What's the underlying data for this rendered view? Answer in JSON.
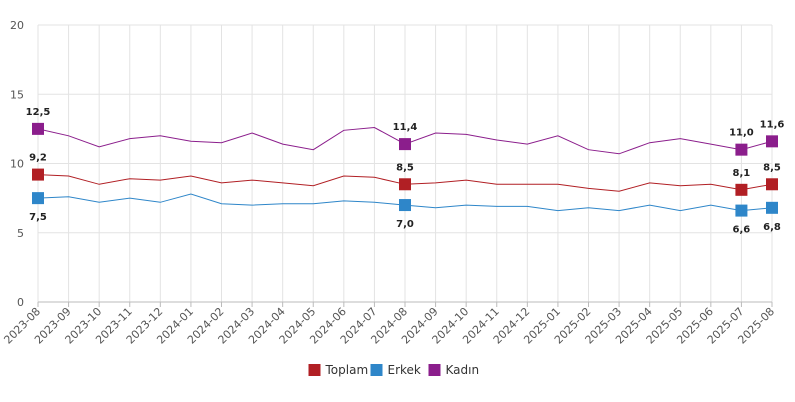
{
  "chart_data": {
    "type": "line",
    "x": [
      "2023-08",
      "2023-09",
      "2023-10",
      "2023-11",
      "2023-12",
      "2024-01",
      "2024-02",
      "2024-03",
      "2024-04",
      "2024-05",
      "2024-06",
      "2024-07",
      "2024-08",
      "2024-09",
      "2024-10",
      "2024-11",
      "2024-12",
      "2025-01",
      "2025-02",
      "2025-03",
      "2025-04",
      "2025-05",
      "2025-06",
      "2025-07",
      "2025-08"
    ],
    "ylim": [
      0,
      20
    ],
    "yticks": [
      "0",
      "5",
      "10",
      "15",
      "20"
    ],
    "grid": true,
    "legend": "bottom-center",
    "series": [
      {
        "name": "Toplam",
        "color": "#b11f24",
        "values": [
          9.2,
          9.1,
          8.5,
          8.9,
          8.8,
          9.1,
          8.6,
          8.8,
          8.6,
          8.4,
          9.1,
          9.0,
          8.5,
          8.6,
          8.8,
          8.5,
          8.5,
          8.5,
          8.2,
          8.0,
          8.6,
          8.4,
          8.5,
          8.1,
          8.5
        ],
        "marked": [
          0,
          12,
          23,
          24
        ],
        "labels": [
          {
            "i": 0,
            "text": "9,2",
            "pos": "above"
          },
          {
            "i": 12,
            "text": "8,5",
            "pos": "above"
          },
          {
            "i": 23,
            "text": "8,1",
            "pos": "above"
          },
          {
            "i": 24,
            "text": "8,5",
            "pos": "above"
          }
        ]
      },
      {
        "name": "Erkek",
        "color": "#2e86c9",
        "values": [
          7.5,
          7.6,
          7.2,
          7.5,
          7.2,
          7.8,
          7.1,
          7.0,
          7.1,
          7.1,
          7.3,
          7.2,
          7.0,
          6.8,
          7.0,
          6.9,
          6.9,
          6.6,
          6.8,
          6.6,
          7.0,
          6.6,
          7.0,
          6.6,
          6.8
        ],
        "marked": [
          0,
          12,
          23,
          24
        ],
        "labels": [
          {
            "i": 0,
            "text": "7,5",
            "pos": "below"
          },
          {
            "i": 12,
            "text": "7,0",
            "pos": "below"
          },
          {
            "i": 23,
            "text": "6,6",
            "pos": "below"
          },
          {
            "i": 24,
            "text": "6,8",
            "pos": "below"
          }
        ]
      },
      {
        "name": "Kadın",
        "color": "#8b1e8c",
        "values": [
          12.5,
          12.0,
          11.2,
          11.8,
          12.0,
          11.6,
          11.5,
          12.2,
          11.4,
          11.0,
          12.4,
          12.6,
          11.4,
          12.2,
          12.1,
          11.7,
          11.4,
          12.0,
          11.0,
          10.7,
          11.5,
          11.8,
          11.4,
          11.0,
          11.6
        ],
        "marked": [
          0,
          12,
          23,
          24
        ],
        "labels": [
          {
            "i": 0,
            "text": "12,5",
            "pos": "above"
          },
          {
            "i": 12,
            "text": "11,4",
            "pos": "above"
          },
          {
            "i": 23,
            "text": "11,0",
            "pos": "above"
          },
          {
            "i": 24,
            "text": "11,6",
            "pos": "above"
          }
        ]
      }
    ]
  }
}
